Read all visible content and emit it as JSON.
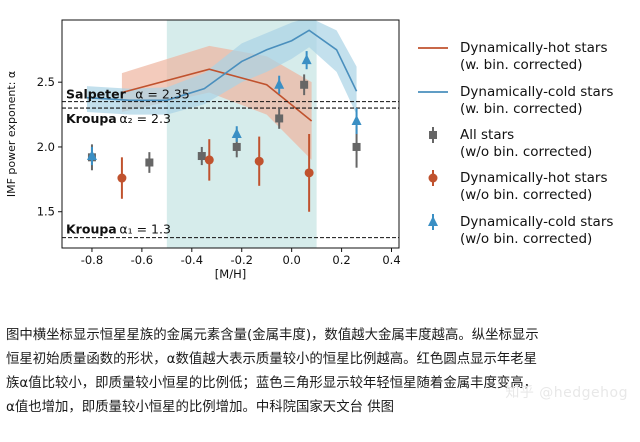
{
  "chart_data": {
    "type": "scatter",
    "xlabel": "[M/H]",
    "ylabel": "IMF power exponent: α",
    "xlim": [
      -0.92,
      0.43
    ],
    "ylim": [
      1.22,
      2.98
    ],
    "x_ticks": [
      "-0.8",
      "-0.6",
      "-0.4",
      "-0.2",
      "0.0",
      "0.2",
      "0.4"
    ],
    "x_tick_values": [
      -0.8,
      -0.6,
      -0.4,
      -0.2,
      0.0,
      0.2,
      0.4
    ],
    "y_ticks": [
      "1.5",
      "2.0",
      "2.5"
    ],
    "y_tick_values": [
      1.5,
      2.0,
      2.5
    ],
    "shaded_region": {
      "x": [
        -0.5,
        0.1
      ],
      "color": "#cfe9e8"
    },
    "reference_lines": [
      {
        "y": 2.35,
        "label_bold": "Salpeter",
        "label": "α = 2.35"
      },
      {
        "y": 2.3,
        "label_bold": "Kroupa",
        "label": "α₂ = 2.3"
      },
      {
        "y": 1.3,
        "label_bold": "Kroupa",
        "label": "α₁ = 1.3"
      }
    ],
    "bands": [
      {
        "name": "hot",
        "color": "#c0522e",
        "fill": "#eeb59f",
        "x": [
          -0.68,
          -0.33,
          -0.1,
          0.08
        ],
        "y": [
          2.42,
          2.6,
          2.48,
          2.2
        ],
        "upper": [
          2.57,
          2.78,
          2.7,
          2.5
        ],
        "lower": [
          2.27,
          2.42,
          2.25,
          1.9
        ]
      },
      {
        "name": "cold",
        "color": "#4a8fbd",
        "fill": "#a9d3e5",
        "x": [
          -0.82,
          -0.65,
          -0.5,
          -0.35,
          -0.2,
          -0.1,
          0.0,
          0.07,
          0.18,
          0.26
        ],
        "y": [
          2.38,
          2.36,
          2.36,
          2.45,
          2.66,
          2.75,
          2.82,
          2.9,
          2.75,
          2.43
        ],
        "upper": [
          2.47,
          2.45,
          2.46,
          2.57,
          2.8,
          2.88,
          2.96,
          3.0,
          2.9,
          2.62
        ],
        "lower": [
          2.27,
          2.25,
          2.25,
          2.33,
          2.5,
          2.58,
          2.68,
          2.77,
          2.58,
          2.25
        ]
      }
    ],
    "series": [
      {
        "name": "all",
        "marker": "square",
        "color": "#666666",
        "x": [
          -0.8,
          -0.57,
          -0.36,
          -0.22,
          -0.05,
          0.05,
          0.26
        ],
        "y": [
          1.92,
          1.88,
          1.93,
          2.0,
          2.22,
          2.48,
          2.0
        ],
        "err": [
          0.1,
          0.08,
          0.07,
          0.08,
          0.08,
          0.08,
          0.16
        ]
      },
      {
        "name": "hot-points",
        "marker": "circle",
        "color": "#c0522e",
        "x": [
          -0.68,
          -0.33,
          -0.13,
          0.07
        ],
        "y": [
          1.76,
          1.9,
          1.89,
          1.8
        ],
        "err": [
          0.16,
          0.16,
          0.19,
          0.3
        ]
      },
      {
        "name": "cold-points",
        "marker": "triangle",
        "color": "#3a8fc4",
        "x": [
          -0.8,
          -0.22,
          -0.05,
          0.06,
          0.26
        ],
        "y": [
          1.93,
          2.1,
          2.48,
          2.67,
          2.2
        ],
        "err": [
          0.07,
          0.06,
          0.07,
          0.07,
          0.1
        ]
      }
    ]
  },
  "legend": [
    {
      "kind": "line",
      "color": "#c0522e",
      "line1": "Dynamically-hot stars",
      "line2": "(w. bin. corrected)"
    },
    {
      "kind": "line",
      "color": "#4a8fbd",
      "line1": "Dynamically-cold stars",
      "line2": "(w. bin. corrected)"
    },
    {
      "kind": "square",
      "color": "#666666",
      "line1": "All stars",
      "line2": "(w/o bin. corrected)"
    },
    {
      "kind": "circle",
      "color": "#c0522e",
      "line1": "Dynamically-hot stars",
      "line2": "(w/o bin. corrected)"
    },
    {
      "kind": "triangle",
      "color": "#3a8fc4",
      "line1": "Dynamically-cold stars",
      "line2": "(w/o bin. corrected)"
    }
  ],
  "caption": {
    "lines": [
      "图中横坐标显示恒星星族的金属元素含量(金属丰度)，数值越大金属丰度越高。纵坐标显示",
      "恒星初始质量函数的形状，α数值越大表示质量较小的恒星比例越高。红色圆点显示年老星",
      "族α值比较小，即质量较小恒星的比例低；蓝色三角形显示较年轻恒星随着金属丰度变高，",
      "α值也增加，即质量较小恒星的比例增加。中科院国家天文台 供图"
    ]
  },
  "watermark": "知乎 @hedgehog"
}
